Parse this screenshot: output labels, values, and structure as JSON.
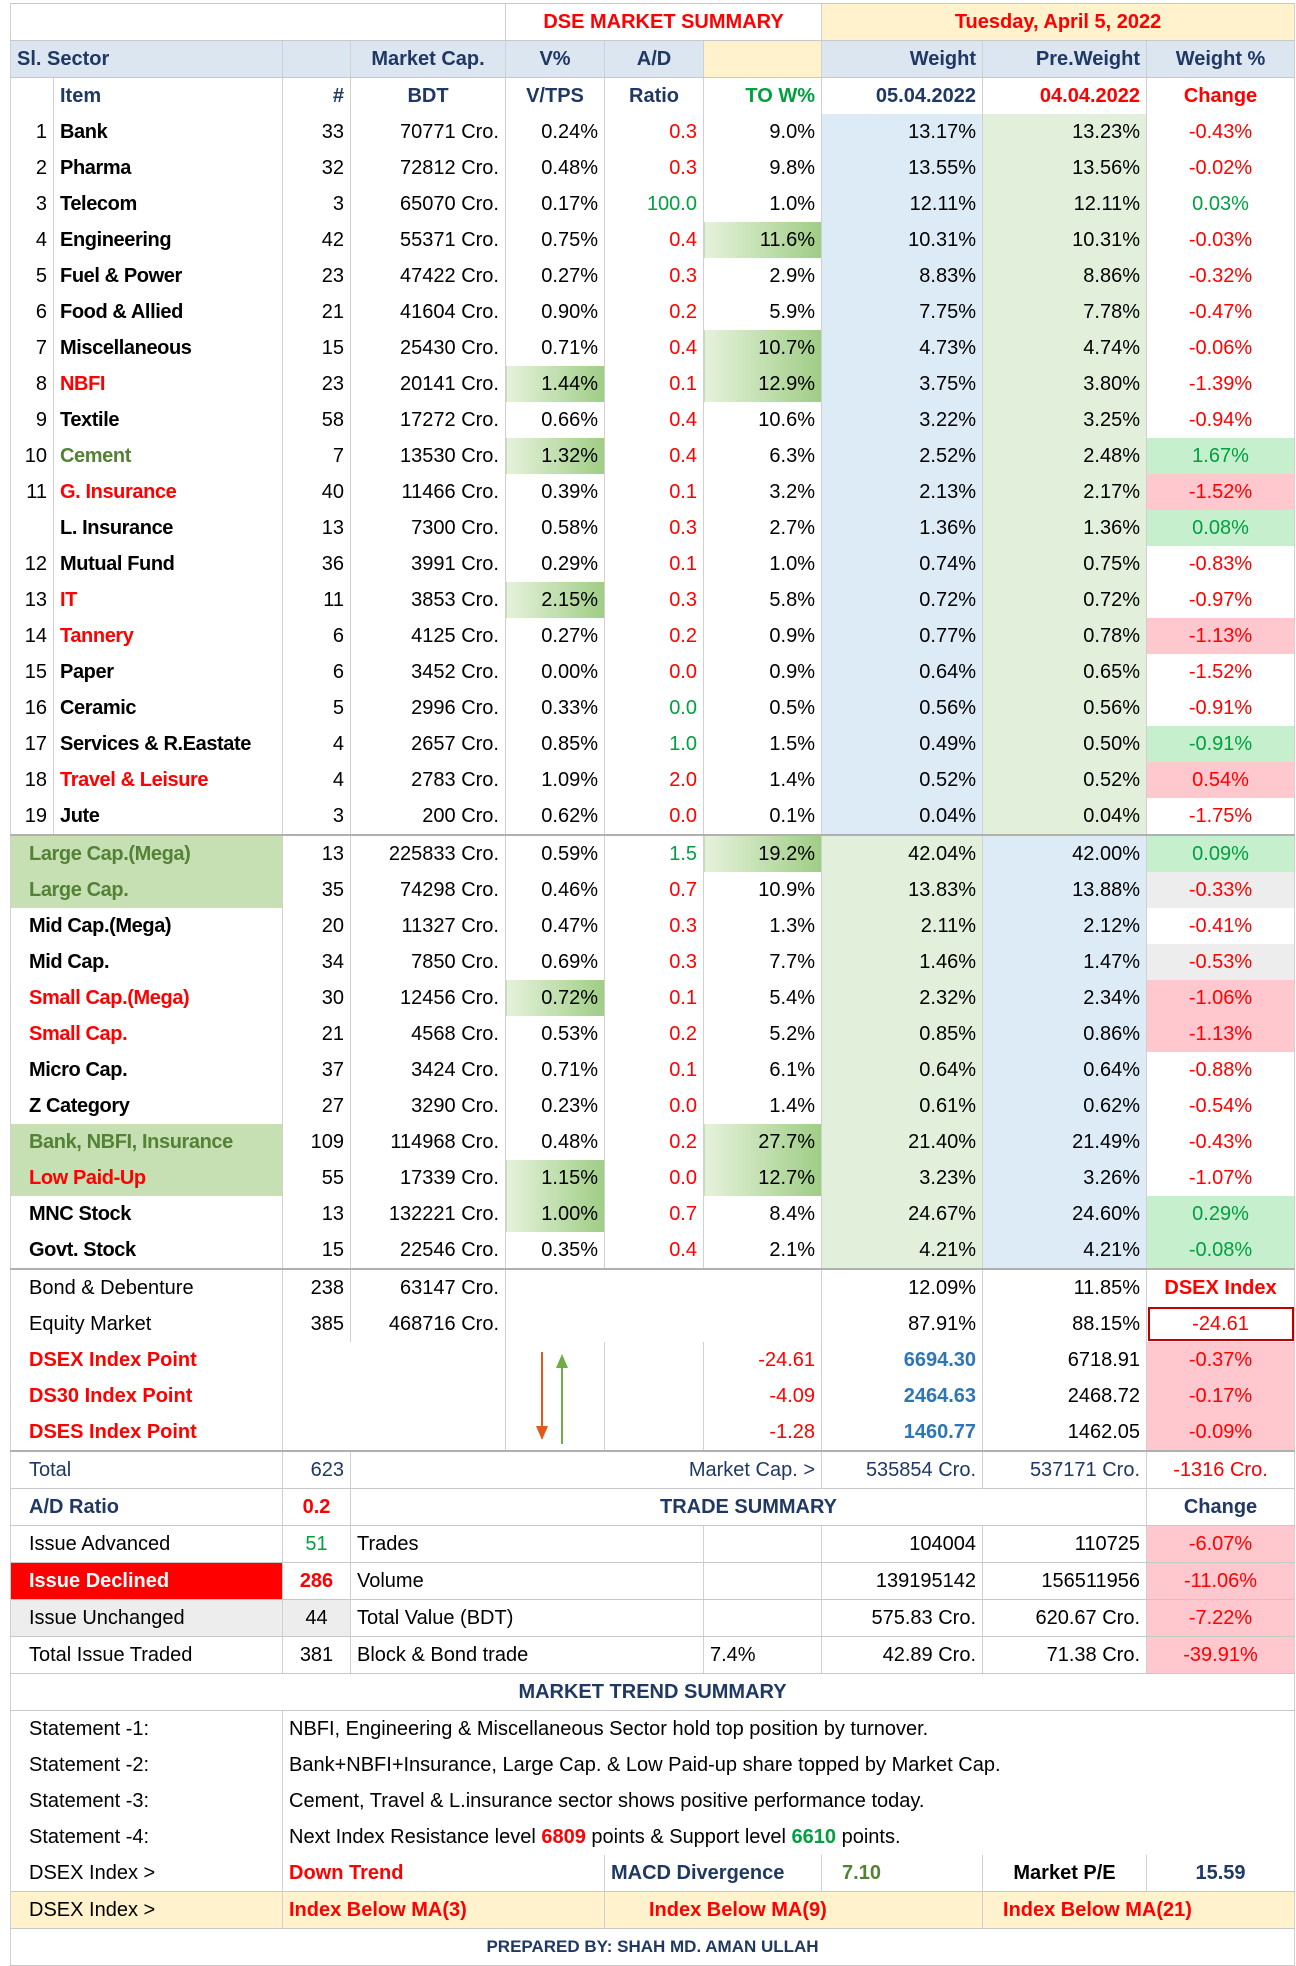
{
  "title": "DSE MARKET SUMMARY",
  "date": "Tuesday, April 5, 2022",
  "header1": [
    "Sl. Sector",
    "Market Cap.",
    "V%",
    "A/D",
    "Weight",
    "Pre.Weight",
    "Weight %"
  ],
  "header2": [
    "Item",
    "#",
    "BDT",
    "V/TPS",
    "Ratio",
    "TO W%",
    "05.04.2022",
    "04.04.2022",
    "Change"
  ],
  "sectors": [
    [
      "1",
      "Bank",
      "33",
      "70771 Cro.",
      "0.24%",
      "0.3",
      "9.0%",
      "13.17%",
      "13.23%",
      "-0.43%"
    ],
    [
      "2",
      "Pharma",
      "32",
      "72812 Cro.",
      "0.48%",
      "0.3",
      "9.8%",
      "13.55%",
      "13.56%",
      "-0.02%"
    ],
    [
      "3",
      "Telecom",
      "3",
      "65070 Cro.",
      "0.17%",
      "100.0",
      "1.0%",
      "12.11%",
      "12.11%",
      "0.03%"
    ],
    [
      "4",
      "Engineering",
      "42",
      "55371 Cro.",
      "0.75%",
      "0.4",
      "11.6%",
      "10.31%",
      "10.31%",
      "-0.03%"
    ],
    [
      "5",
      "Fuel & Power",
      "23",
      "47422 Cro.",
      "0.27%",
      "0.3",
      "2.9%",
      "8.83%",
      "8.86%",
      "-0.32%"
    ],
    [
      "6",
      "Food & Allied",
      "21",
      "41604 Cro.",
      "0.90%",
      "0.2",
      "5.9%",
      "7.75%",
      "7.78%",
      "-0.47%"
    ],
    [
      "7",
      "Miscellaneous",
      "15",
      "25430 Cro.",
      "0.71%",
      "0.4",
      "10.7%",
      "4.73%",
      "4.74%",
      "-0.06%"
    ],
    [
      "8",
      "NBFI",
      "23",
      "20141 Cro.",
      "1.44%",
      "0.1",
      "12.9%",
      "3.75%",
      "3.80%",
      "-1.39%"
    ],
    [
      "9",
      "Textile",
      "58",
      "17272 Cro.",
      "0.66%",
      "0.4",
      "10.6%",
      "3.22%",
      "3.25%",
      "-0.94%"
    ],
    [
      "10",
      "Cement",
      "7",
      "13530 Cro.",
      "1.32%",
      "0.4",
      "6.3%",
      "2.52%",
      "2.48%",
      "1.67%"
    ],
    [
      "11",
      "G. Insurance",
      "40",
      "11466 Cro.",
      "0.39%",
      "0.1",
      "3.2%",
      "2.13%",
      "2.17%",
      "-1.52%"
    ],
    [
      null,
      "L. Insurance",
      "13",
      "7300 Cro.",
      "0.58%",
      "0.3",
      "2.7%",
      "1.36%",
      "1.36%",
      "0.08%"
    ],
    [
      "12",
      "Mutual Fund",
      "36",
      "3991 Cro.",
      "0.29%",
      "0.1",
      "1.0%",
      "0.74%",
      "0.75%",
      "-0.83%"
    ],
    [
      "13",
      "IT",
      "11",
      "3853 Cro.",
      "2.15%",
      "0.3",
      "5.8%",
      "0.72%",
      "0.72%",
      "-0.97%"
    ],
    [
      "14",
      "Tannery",
      "6",
      "4125 Cro.",
      "0.27%",
      "0.2",
      "0.9%",
      "0.77%",
      "0.78%",
      "-1.13%"
    ],
    [
      "15",
      "Paper",
      "6",
      "3452 Cro.",
      "0.00%",
      "0.0",
      "0.9%",
      "0.64%",
      "0.65%",
      "-1.52%"
    ],
    [
      "16",
      "Ceramic",
      "5",
      "2996 Cro.",
      "0.33%",
      "0.0",
      "0.5%",
      "0.56%",
      "0.56%",
      "-0.91%"
    ],
    [
      "17",
      "Services & R.Eastate",
      "4",
      "2657 Cro.",
      "0.85%",
      "1.0",
      "1.5%",
      "0.49%",
      "0.50%",
      "-0.91%"
    ],
    [
      "18",
      "Travel & Leisure",
      "4",
      "2783 Cro.",
      "1.09%",
      "2.0",
      "1.4%",
      "0.52%",
      "0.52%",
      "0.54%"
    ],
    [
      "19",
      "Jute",
      "3",
      "200 Cro.",
      "0.62%",
      "0.0",
      "0.1%",
      "0.04%",
      "0.04%",
      "-1.75%"
    ]
  ],
  "categories": [
    [
      "Large Cap.(Mega)",
      "13",
      "225833 Cro.",
      "0.59%",
      "1.5",
      "19.2%",
      "42.04%",
      "42.00%",
      "0.09%"
    ],
    [
      "Large Cap.",
      "35",
      "74298 Cro.",
      "0.46%",
      "0.7",
      "10.9%",
      "13.83%",
      "13.88%",
      "-0.33%"
    ],
    [
      "Mid Cap.(Mega)",
      "20",
      "11327 Cro.",
      "0.47%",
      "0.3",
      "1.3%",
      "2.11%",
      "2.12%",
      "-0.41%"
    ],
    [
      "Mid Cap.",
      "34",
      "7850 Cro.",
      "0.69%",
      "0.3",
      "7.7%",
      "1.46%",
      "1.47%",
      "-0.53%"
    ],
    [
      "Small Cap.(Mega)",
      "30",
      "12456 Cro.",
      "0.72%",
      "0.1",
      "5.4%",
      "2.32%",
      "2.34%",
      "-1.06%"
    ],
    [
      "Small Cap.",
      "21",
      "4568 Cro.",
      "0.53%",
      "0.2",
      "5.2%",
      "0.85%",
      "0.86%",
      "-1.13%"
    ],
    [
      "Micro Cap.",
      "37",
      "3424 Cro.",
      "0.71%",
      "0.1",
      "6.1%",
      "0.64%",
      "0.64%",
      "-0.88%"
    ],
    [
      "Z Category",
      "27",
      "3290 Cro.",
      "0.23%",
      "0.0",
      "1.4%",
      "0.61%",
      "0.62%",
      "-0.54%"
    ],
    [
      "Bank, NBFI, Insurance",
      "109",
      "114968 Cro.",
      "0.48%",
      "0.2",
      "27.7%",
      "21.40%",
      "21.49%",
      "-0.43%"
    ],
    [
      "Low Paid-Up",
      "55",
      "17339 Cro.",
      "1.15%",
      "0.0",
      "12.7%",
      "3.23%",
      "3.26%",
      "-1.07%"
    ],
    [
      "MNC Stock",
      "13",
      "132221 Cro.",
      "1.00%",
      "0.7",
      "8.4%",
      "24.67%",
      "24.60%",
      "0.29%"
    ],
    [
      "Govt. Stock",
      "15",
      "22546 Cro.",
      "0.35%",
      "0.4",
      "2.1%",
      "4.21%",
      "4.21%",
      "-0.08%"
    ]
  ],
  "bond": [
    "Bond & Debenture",
    "238",
    "63147 Cro.",
    "12.09%",
    "11.85%",
    "DSEX Index"
  ],
  "equity": [
    "Equity Market",
    "385",
    "468716 Cro.",
    "87.91%",
    "88.15%",
    "-24.61"
  ],
  "indices": [
    [
      "DSEX Index Point",
      "-24.61",
      "6694.30",
      "6718.91",
      "-0.37%"
    ],
    [
      "DS30 Index Point",
      "-4.09",
      "2464.63",
      "2468.72",
      "-0.17%"
    ],
    [
      "DSES Index Point",
      "-1.28",
      "1460.77",
      "1462.05",
      "-0.09%"
    ]
  ],
  "total": [
    "Total",
    "623",
    "Market Cap. >",
    "535854 Cro.",
    "537171 Cro.",
    "-1316 Cro."
  ],
  "ad_row": [
    "A/D Ratio",
    "0.2",
    "TRADE SUMMARY",
    "Change"
  ],
  "trade": [
    [
      "Issue Advanced",
      "51",
      "Trades",
      null,
      "104004",
      "110725",
      "-6.07%"
    ],
    [
      "Issue Declined",
      "286",
      "Volume",
      null,
      "139195142",
      "156511956",
      "-11.06%"
    ],
    [
      "Issue Unchanged",
      "44",
      "Total Value (BDT)",
      null,
      "575.83 Cro.",
      "620.67 Cro.",
      "-7.22%"
    ],
    [
      "Total Issue Traded",
      "381",
      "Block & Bond trade",
      "7.4%",
      "42.89 Cro.",
      "71.38 Cro.",
      "-39.91%"
    ]
  ],
  "trend_title": "MARKET TREND SUMMARY",
  "statements": [
    [
      "Statement -1:",
      "NBFI, Engineering & Miscellaneous  Sector hold top position by turnover."
    ],
    [
      "Statement -2:",
      "Bank+NBFI+Insurance, Large Cap. & Low Paid-up share topped by Market Cap."
    ],
    [
      "Statement -3:",
      "Cement, Travel & L.insurance  sector shows positive performance today."
    ],
    [
      "Statement -4:",
      "Next Index Resistance level ",
      "6809",
      " points & Support level ",
      "6610",
      " points."
    ]
  ],
  "dsex_line": [
    "DSEX Index >",
    "Down Trend",
    "MACD Divergence",
    "7.10",
    "Market P/E",
    "15.59"
  ],
  "ma_line": [
    "DSEX Index >",
    "Index Below MA(3)",
    "Index Below MA(9)",
    "Index Below MA(21)"
  ],
  "footer": "PREPARED BY: SHAH MD. AMAN ULLAH"
}
